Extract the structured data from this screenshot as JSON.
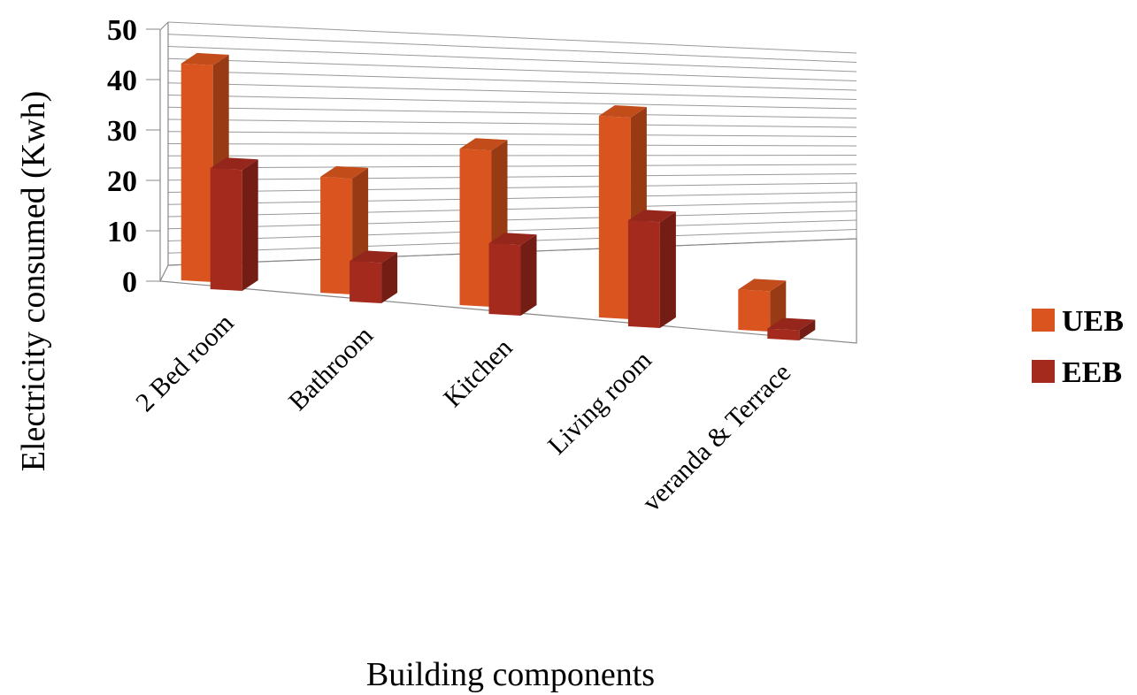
{
  "chart_data": {
    "type": "bar",
    "title": "",
    "xlabel": "Building components",
    "ylabel": "Electricity consumed (Kwh)",
    "ylim": [
      0,
      50
    ],
    "yticks": [
      0,
      10,
      20,
      30,
      40,
      50
    ],
    "categories": [
      "2 Bed room",
      "Bathroom",
      "Kitchen",
      "Living room",
      "veranda & Terrace"
    ],
    "series": [
      {
        "name": "UEB",
        "color": "#D9541E",
        "values": [
          43,
          23,
          31,
          40,
          8
        ]
      },
      {
        "name": "EEB",
        "color": "#A52A1E",
        "values": [
          24,
          8,
          14,
          21,
          2
        ]
      }
    ],
    "grid": true,
    "legend": "right",
    "style": "3d-clustered-column"
  }
}
